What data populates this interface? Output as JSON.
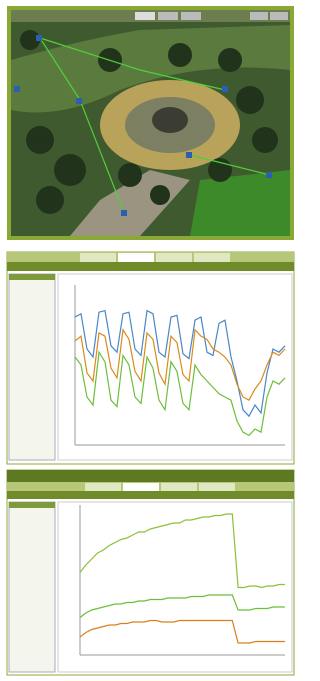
{
  "chart_data": [
    {
      "type": "line",
      "ylim": [
        0,
        100
      ],
      "series": [
        {
          "color": "#4a86c8",
          "values": [
            80,
            82,
            60,
            55,
            83,
            84,
            62,
            58,
            82,
            83,
            60,
            56,
            84,
            82,
            58,
            55,
            80,
            81,
            57,
            54,
            78,
            80,
            58,
            56,
            76,
            78,
            55,
            40,
            22,
            18,
            25,
            20,
            45,
            60,
            58,
            62
          ]
        },
        {
          "color": "#d98a1c",
          "values": [
            65,
            68,
            45,
            40,
            70,
            68,
            48,
            42,
            72,
            66,
            46,
            40,
            70,
            66,
            45,
            38,
            68,
            64,
            44,
            40,
            72,
            68,
            66,
            60,
            58,
            55,
            50,
            38,
            30,
            28,
            35,
            40,
            50,
            58,
            56,
            60
          ]
        },
        {
          "color": "#6cbf3a",
          "values": [
            55,
            50,
            30,
            25,
            58,
            52,
            28,
            24,
            56,
            50,
            30,
            26,
            55,
            48,
            28,
            22,
            52,
            46,
            26,
            22,
            50,
            44,
            40,
            36,
            32,
            30,
            28,
            15,
            8,
            6,
            10,
            8,
            30,
            40,
            38,
            42
          ]
        }
      ]
    },
    {
      "type": "line",
      "ylim": [
        0,
        100
      ],
      "series": [
        {
          "color": "#8cbf3a",
          "values": [
            55,
            60,
            64,
            68,
            70,
            73,
            75,
            77,
            78,
            80,
            82,
            82,
            84,
            85,
            86,
            87,
            88,
            88,
            90,
            90,
            91,
            92,
            92,
            93,
            93,
            94,
            94,
            45,
            45,
            46,
            46,
            45,
            46,
            46,
            47,
            47
          ]
        },
        {
          "color": "#6cbf3a",
          "values": [
            25,
            28,
            30,
            31,
            32,
            33,
            34,
            34,
            35,
            35,
            36,
            36,
            37,
            37,
            37,
            38,
            38,
            38,
            38,
            39,
            39,
            39,
            40,
            40,
            40,
            40,
            40,
            30,
            30,
            30,
            31,
            31,
            31,
            32,
            32,
            32
          ]
        },
        {
          "color": "#d9801c",
          "values": [
            12,
            15,
            17,
            18,
            19,
            20,
            20,
            21,
            21,
            22,
            22,
            22,
            23,
            23,
            22,
            22,
            22,
            23,
            23,
            23,
            23,
            23,
            23,
            23,
            23,
            23,
            23,
            8,
            8,
            8,
            9,
            9,
            9,
            9,
            9,
            9
          ]
        }
      ]
    }
  ]
}
